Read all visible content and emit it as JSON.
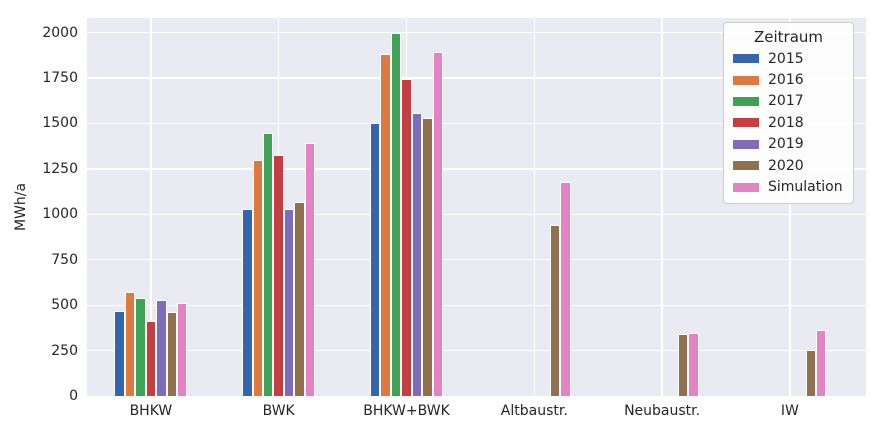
{
  "chart_data": {
    "type": "bar",
    "title": "",
    "xlabel": "",
    "ylabel": "MWh/a",
    "legend_title": "Zeitraum",
    "legend_position": "upper right",
    "grid": true,
    "plot_background": "#EAEAF2",
    "grid_color": "#FFFFFF",
    "text_color": "#262626",
    "ylim": [
      0,
      2080
    ],
    "yticks": [
      0,
      250,
      500,
      750,
      1000,
      1250,
      1500,
      1750,
      2000
    ],
    "categories": [
      "BHKW",
      "BWK",
      "BHKW+BWK",
      "Altbaustr.",
      "Neubaustr.",
      "IW"
    ],
    "series": [
      {
        "name": "2015",
        "color": "#3465AD",
        "values": [
          470,
          1030,
          1505,
          null,
          null,
          null
        ]
      },
      {
        "name": "2016",
        "color": "#E0793F",
        "values": [
          575,
          1300,
          1880,
          null,
          null,
          null
        ]
      },
      {
        "name": "2017",
        "color": "#3FA255",
        "values": [
          540,
          1450,
          1995,
          null,
          null,
          null
        ]
      },
      {
        "name": "2018",
        "color": "#C43E44",
        "values": [
          415,
          1325,
          1745,
          null,
          null,
          null
        ]
      },
      {
        "name": "2019",
        "color": "#7F6CBA",
        "values": [
          530,
          1030,
          1560,
          null,
          null,
          null
        ]
      },
      {
        "name": "2020",
        "color": "#91704F",
        "values": [
          460,
          1065,
          1530,
          940,
          340,
          255
        ]
      },
      {
        "name": "Simulation",
        "color": "#E383C4",
        "values": [
          510,
          1390,
          1895,
          1180,
          345,
          365
        ]
      }
    ]
  }
}
